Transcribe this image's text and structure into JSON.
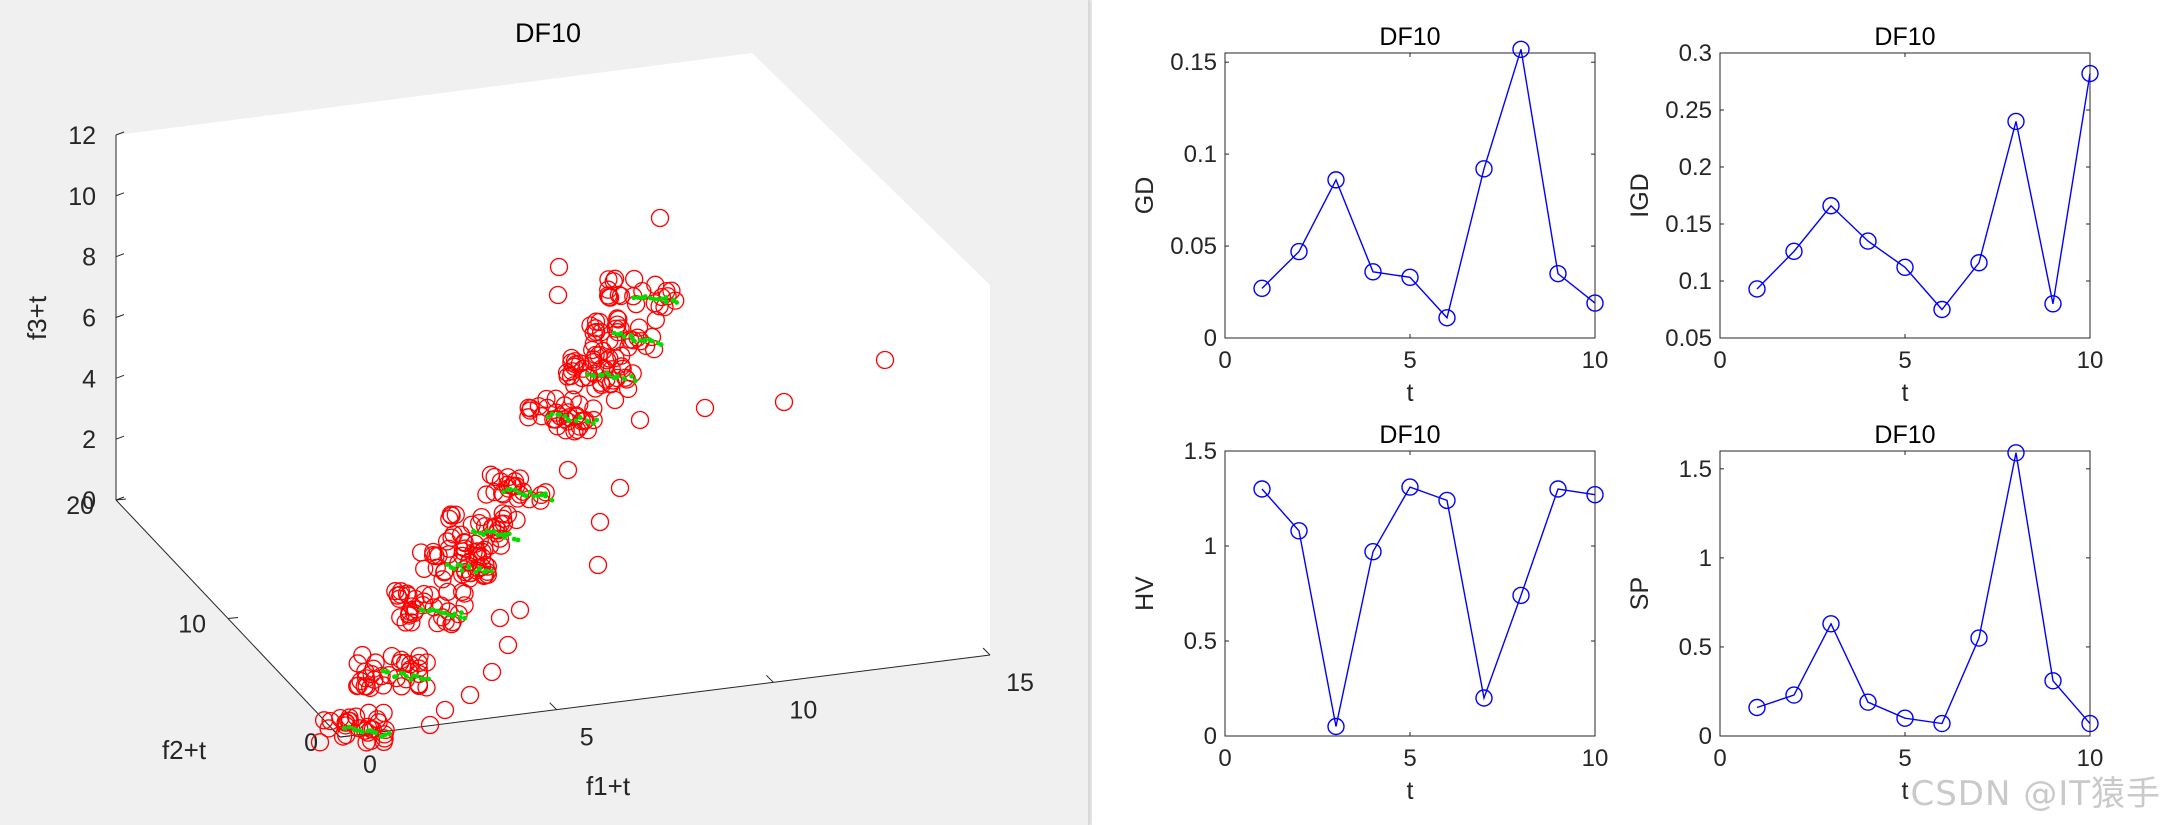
{
  "watermark": "CSDN @IT猿手",
  "colors": {
    "circle3d": "#ff0000",
    "pareto3d": "#00dd00",
    "line2d": "#0000ff",
    "axis": "#262626",
    "box": "#ffffff"
  },
  "chart_data": [
    {
      "type": "scatter",
      "title": "DF10",
      "xlabel": "f1+t",
      "ylabel": "f2+t",
      "zlabel": "f3+t",
      "xlim": [
        0,
        15
      ],
      "ylim": [
        0,
        20
      ],
      "zlim": [
        0,
        12
      ],
      "xticks": [
        0,
        5,
        10,
        15
      ],
      "yticks": [
        0,
        10,
        20
      ],
      "zticks": [
        0,
        2,
        4,
        6,
        8,
        10,
        12
      ],
      "view": "3d",
      "grid": false,
      "series": [
        {
          "name": "",
          "marker": "circle",
          "color": "#ff0000",
          "cluster_centers": [
            [
              0.5,
              0.4,
              0.4
            ],
            [
              1.2,
              1.4,
              1.3
            ],
            [
              1.8,
              2.4,
              2.1
            ],
            [
              2.5,
              3.3,
              2.9
            ],
            [
              3.0,
              4.2,
              3.4
            ],
            [
              3.6,
              5.1,
              3.9
            ],
            [
              4.2,
              6.2,
              4.5
            ],
            [
              4.6,
              7.1,
              5.2
            ],
            [
              5.0,
              8.0,
              5.9
            ]
          ],
          "outliers": [
            [
              12.5,
              8.0,
              1.2
            ],
            [
              9.5,
              7.0,
              0.8
            ],
            [
              7.5,
              6.5,
              0.9
            ],
            [
              6.0,
              8.5,
              7.8
            ],
            [
              5.8,
              7.5,
              4.8
            ],
            [
              3.5,
              6.5,
              1.2
            ],
            [
              4.5,
              5.0,
              0.5
            ],
            [
              1.5,
              2.0,
              1.0
            ],
            [
              2.2,
              1.0,
              0.8
            ],
            [
              3.0,
              2.5,
              0.3
            ]
          ]
        },
        {
          "name": "",
          "marker": "dot",
          "color": "#00dd00",
          "cluster_centers": [
            [
              0.6,
              0.4,
              0.4
            ],
            [
              1.3,
              1.4,
              1.3
            ],
            [
              1.9,
              2.4,
              2.1
            ],
            [
              2.6,
              3.3,
              2.9
            ],
            [
              3.1,
              4.2,
              3.4
            ],
            [
              3.7,
              5.1,
              3.9
            ],
            [
              4.3,
              6.2,
              4.5
            ],
            [
              4.7,
              7.1,
              5.2
            ],
            [
              5.1,
              8.0,
              5.9
            ]
          ]
        }
      ]
    },
    {
      "type": "line",
      "title": "DF10",
      "xlabel": "t",
      "ylabel": "GD",
      "xlim": [
        0,
        10
      ],
      "ylim": [
        0,
        0.155
      ],
      "xticks": [
        0,
        5,
        10
      ],
      "yticks": [
        0,
        0.05,
        0.1,
        0.15
      ],
      "ytick_labels": [
        "0",
        "0.05",
        "0.1",
        "0.15"
      ],
      "x": [
        1,
        2,
        3,
        4,
        5,
        6,
        7,
        8,
        9,
        10
      ],
      "values": [
        0.027,
        0.047,
        0.086,
        0.036,
        0.033,
        0.011,
        0.092,
        0.157,
        0.035,
        0.019
      ],
      "grid": false
    },
    {
      "type": "line",
      "title": "DF10",
      "xlabel": "t",
      "ylabel": "IGD",
      "xlim": [
        0,
        10
      ],
      "ylim": [
        0.05,
        0.3
      ],
      "xticks": [
        0,
        5,
        10
      ],
      "yticks": [
        0.05,
        0.1,
        0.15,
        0.2,
        0.25,
        0.3
      ],
      "ytick_labels": [
        "0.05",
        "0.1",
        "0.15",
        "0.2",
        "0.25",
        "0.3"
      ],
      "x": [
        1,
        2,
        3,
        4,
        5,
        6,
        7,
        8,
        9,
        10
      ],
      "values": [
        0.093,
        0.126,
        0.166,
        0.135,
        0.112,
        0.075,
        0.116,
        0.24,
        0.08,
        0.282
      ],
      "grid": false
    },
    {
      "type": "line",
      "title": "DF10",
      "xlabel": "t",
      "ylabel": "HV",
      "xlim": [
        0,
        10
      ],
      "ylim": [
        0,
        1.5
      ],
      "xticks": [
        0,
        5,
        10
      ],
      "yticks": [
        0,
        0.5,
        1,
        1.5
      ],
      "ytick_labels": [
        "0",
        "0.5",
        "1",
        "1.5"
      ],
      "x": [
        1,
        2,
        3,
        4,
        5,
        6,
        7,
        8,
        9,
        10
      ],
      "values": [
        1.3,
        1.08,
        0.05,
        0.97,
        1.31,
        1.24,
        0.2,
        0.74,
        1.3,
        1.27
      ],
      "grid": false
    },
    {
      "type": "line",
      "title": "DF10",
      "xlabel": "t",
      "ylabel": "SP",
      "xlim": [
        0,
        10
      ],
      "ylim": [
        0,
        1.6
      ],
      "xticks": [
        0,
        5,
        10
      ],
      "yticks": [
        0,
        0.5,
        1,
        1.5
      ],
      "ytick_labels": [
        "0",
        "0.5",
        "1",
        "1.5"
      ],
      "x": [
        1,
        2,
        3,
        4,
        5,
        6,
        7,
        8,
        9,
        10
      ],
      "values": [
        0.16,
        0.23,
        0.63,
        0.19,
        0.1,
        0.07,
        0.55,
        1.59,
        0.31,
        0.07
      ],
      "grid": false
    }
  ]
}
